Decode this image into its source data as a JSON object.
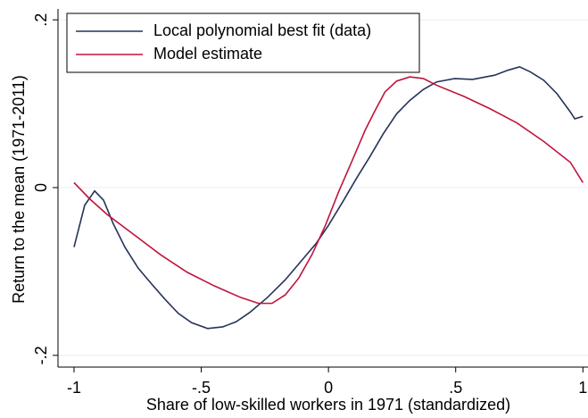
{
  "chart_data": {
    "type": "line",
    "xlabel": "Share of low-skilled workers in 1971 (standardized)",
    "ylabel": "Return to the mean (1971-2011)",
    "xlim": [
      -1.063,
      1.02
    ],
    "ylim": [
      -0.214,
      0.213
    ],
    "xticks": [
      -1,
      {
        "value": -0.5,
        "label": "-.5"
      },
      0,
      {
        "value": 0.5,
        "label": ".5"
      },
      1
    ],
    "yticks": [
      {
        "value": -0.2,
        "label": "-.2"
      },
      0,
      {
        "value": 0.2,
        "label": ".2"
      }
    ],
    "grid": true,
    "legend": "top-left",
    "series": [
      {
        "name": "Local polynomial best fit (data)",
        "color": "#26325a",
        "x": [
          -1.0,
          -0.958,
          -0.919,
          -0.884,
          -0.846,
          -0.8,
          -0.748,
          -0.695,
          -0.643,
          -0.59,
          -0.538,
          -0.475,
          -0.415,
          -0.363,
          -0.31,
          -0.24,
          -0.17,
          -0.1,
          -0.047,
          0,
          0.058,
          0.11,
          0.163,
          0.215,
          0.268,
          0.32,
          0.373,
          0.425,
          0.496,
          0.566,
          0.653,
          0.706,
          0.751,
          0.793,
          0.846,
          0.898,
          0.951,
          0.968,
          1.0
        ],
        "values": [
          -0.071,
          -0.021,
          -0.004,
          -0.015,
          -0.043,
          -0.071,
          -0.096,
          -0.115,
          -0.133,
          -0.15,
          -0.161,
          -0.168,
          -0.166,
          -0.16,
          -0.149,
          -0.131,
          -0.11,
          -0.085,
          -0.066,
          -0.045,
          -0.016,
          0.011,
          0.037,
          0.064,
          0.088,
          0.104,
          0.117,
          0.126,
          0.13,
          0.129,
          0.134,
          0.14,
          0.144,
          0.138,
          0.128,
          0.112,
          0.09,
          0.082,
          0.085
        ]
      },
      {
        "name": "Model estimate",
        "color": "#c0143c",
        "x": [
          -1.0,
          -0.94,
          -0.87,
          -0.765,
          -0.66,
          -0.555,
          -0.45,
          -0.345,
          -0.275,
          -0.222,
          -0.17,
          -0.117,
          -0.065,
          -0.012,
          0.04,
          0.093,
          0.145,
          0.18,
          0.222,
          0.268,
          0.32,
          0.373,
          0.425,
          0.53,
          0.635,
          0.741,
          0.846,
          0.951,
          1.0
        ],
        "values": [
          0.006,
          -0.013,
          -0.032,
          -0.056,
          -0.08,
          -0.101,
          -0.117,
          -0.131,
          -0.138,
          -0.138,
          -0.128,
          -0.108,
          -0.08,
          -0.045,
          -0.005,
          0.032,
          0.069,
          0.09,
          0.114,
          0.127,
          0.132,
          0.13,
          0.122,
          0.109,
          0.094,
          0.077,
          0.055,
          0.03,
          0.006
        ]
      }
    ]
  }
}
